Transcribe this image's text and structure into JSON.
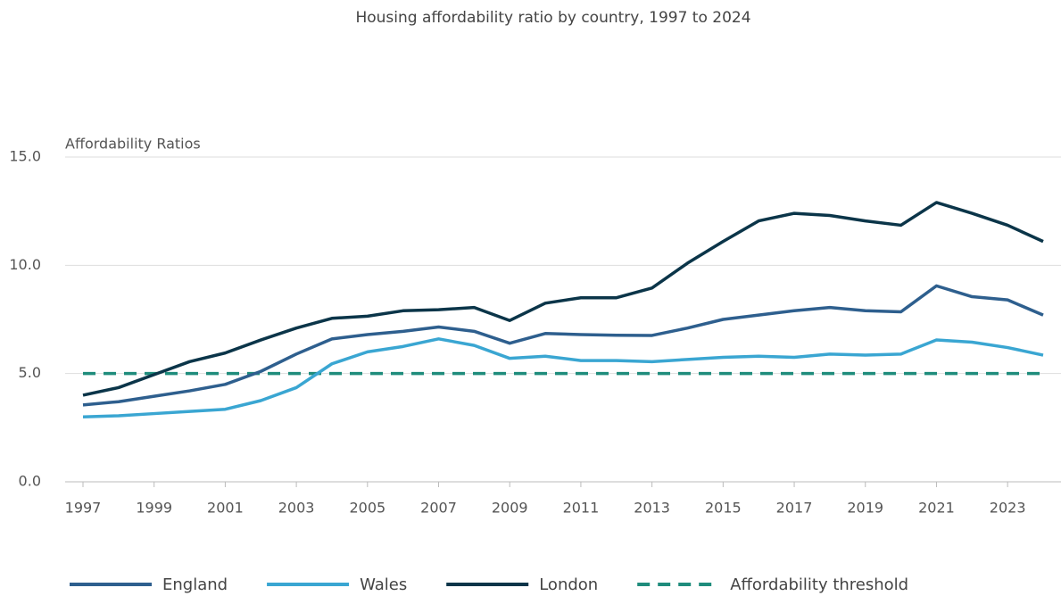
{
  "chart_data": {
    "type": "line",
    "title": "Housing affordability ratio by country, 1997 to 2024",
    "y_label": "Affordability Ratios",
    "x": [
      1997,
      1998,
      1999,
      2000,
      2001,
      2002,
      2003,
      2004,
      2005,
      2006,
      2007,
      2008,
      2009,
      2010,
      2011,
      2012,
      2013,
      2014,
      2015,
      2016,
      2017,
      2018,
      2019,
      2020,
      2021,
      2022,
      2023,
      2024
    ],
    "xlim": [
      1997,
      2024
    ],
    "xticks": [
      1997,
      1999,
      2001,
      2003,
      2005,
      2007,
      2009,
      2011,
      2013,
      2015,
      2017,
      2019,
      2021,
      2023
    ],
    "ylim": [
      0,
      15
    ],
    "yticks": [
      {
        "value": 0,
        "label": "0.0"
      },
      {
        "value": 5,
        "label": "5.0"
      },
      {
        "value": 10,
        "label": "10.0"
      },
      {
        "value": 15,
        "label": "15.0"
      }
    ],
    "grid": true,
    "legend": "bottom",
    "series": [
      {
        "name": "England",
        "color": "#2e5f8e",
        "values": [
          3.55,
          3.7,
          3.95,
          4.2,
          4.5,
          5.1,
          5.9,
          6.6,
          6.8,
          6.95,
          7.15,
          6.95,
          6.4,
          6.85,
          6.8,
          6.77,
          6.76,
          7.1,
          7.5,
          7.7,
          7.9,
          8.05,
          7.9,
          7.85,
          9.05,
          8.55,
          8.4,
          7.7
        ]
      },
      {
        "name": "Wales",
        "color": "#3aa6d2",
        "values": [
          3.0,
          3.05,
          3.15,
          3.25,
          3.35,
          3.75,
          4.35,
          5.45,
          6.0,
          6.25,
          6.6,
          6.3,
          5.7,
          5.8,
          5.6,
          5.6,
          5.55,
          5.65,
          5.75,
          5.8,
          5.75,
          5.9,
          5.85,
          5.9,
          6.55,
          6.45,
          6.2,
          5.85
        ]
      },
      {
        "name": "London",
        "color": "#0b3549",
        "values": [
          4.0,
          4.35,
          4.95,
          5.55,
          5.95,
          6.55,
          7.1,
          7.55,
          7.65,
          7.9,
          7.95,
          8.05,
          7.45,
          8.25,
          8.5,
          8.5,
          8.95,
          10.1,
          11.1,
          12.05,
          12.4,
          12.3,
          12.05,
          11.85,
          12.9,
          12.4,
          11.85,
          11.1
        ]
      }
    ],
    "threshold": {
      "name": "Affordability threshold",
      "value": 5,
      "color": "#1f8c7c",
      "dashed": true
    }
  }
}
